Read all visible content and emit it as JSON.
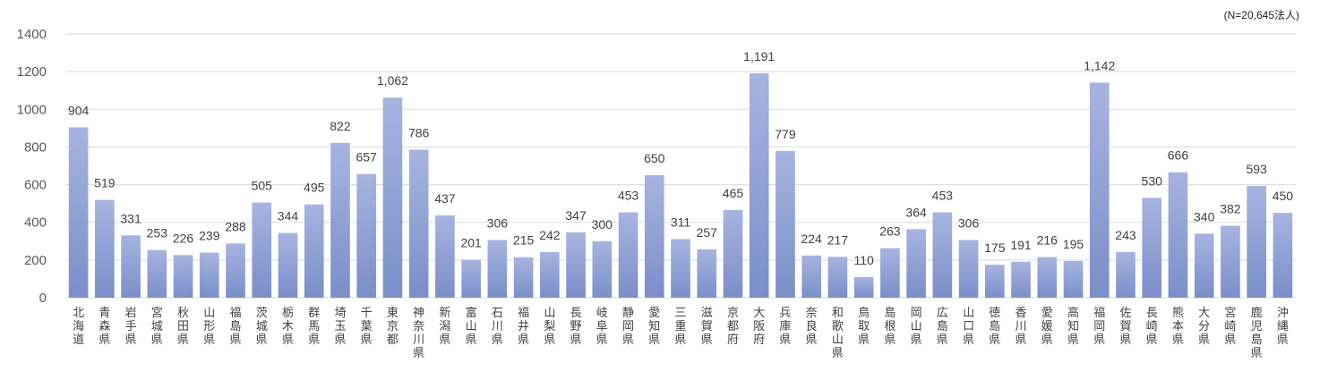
{
  "note": "(N=20,645法人)",
  "colors": {
    "bar_top": "#a6b4e0",
    "bar_bottom": "#7b8ec9",
    "grid": "#d9d9d9"
  },
  "chart_data": {
    "type": "bar",
    "title": "",
    "xlabel": "",
    "ylabel": "",
    "ylim": [
      0,
      1400
    ],
    "yticks": [
      0,
      200,
      400,
      600,
      800,
      1000,
      1200,
      1400
    ],
    "grid": true,
    "categories": [
      "北海道",
      "青森県",
      "岩手県",
      "宮城県",
      "秋田県",
      "山形県",
      "福島県",
      "茨城県",
      "栃木県",
      "群馬県",
      "埼玉県",
      "千葉県",
      "東京都",
      "神奈川県",
      "新潟県",
      "富山県",
      "石川県",
      "福井県",
      "山梨県",
      "長野県",
      "岐阜県",
      "静岡県",
      "愛知県",
      "三重県",
      "滋賀県",
      "京都府",
      "大阪府",
      "兵庫県",
      "奈良県",
      "和歌山県",
      "鳥取県",
      "島根県",
      "岡山県",
      "広島県",
      "山口県",
      "徳島県",
      "香川県",
      "愛媛県",
      "高知県",
      "福岡県",
      "佐賀県",
      "長崎県",
      "熊本県",
      "大分県",
      "宮崎県",
      "鹿児島県",
      "沖縄県"
    ],
    "values": [
      904,
      519,
      331,
      253,
      226,
      239,
      288,
      505,
      344,
      495,
      822,
      657,
      1062,
      786,
      437,
      201,
      306,
      215,
      242,
      347,
      300,
      453,
      650,
      311,
      257,
      465,
      1191,
      779,
      224,
      217,
      110,
      263,
      364,
      453,
      306,
      175,
      191,
      216,
      195,
      1142,
      243,
      530,
      666,
      340,
      382,
      593,
      450
    ],
    "data_labels": [
      "904",
      "519",
      "331",
      "253",
      "226",
      "239",
      "288",
      "505",
      "344",
      "495",
      "822",
      "657",
      "1,062",
      "786",
      "437",
      "201",
      "306",
      "215",
      "242",
      "347",
      "300",
      "453",
      "650",
      "311",
      "257",
      "465",
      "1,191",
      "779",
      "224",
      "217",
      "110",
      "263",
      "364",
      "453",
      "306",
      "175",
      "191",
      "216",
      "195",
      "1,142",
      "243",
      "530",
      "666",
      "340",
      "382",
      "593",
      "450"
    ]
  }
}
